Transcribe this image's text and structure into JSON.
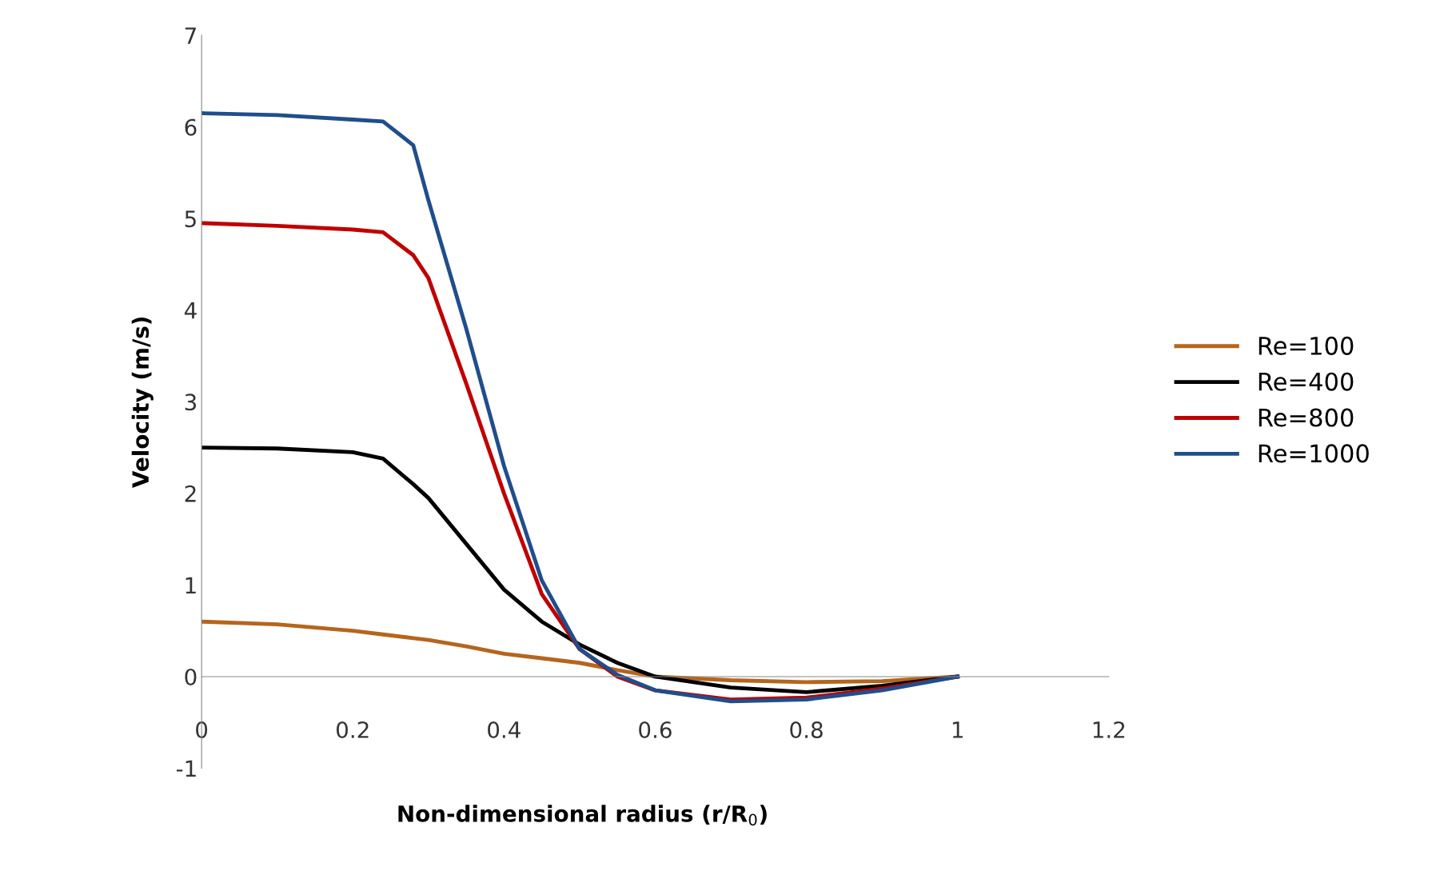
{
  "chart_data": {
    "type": "line",
    "xlabel": "Non-dimensional radius (r/R$_{0}$)",
    "ylabel": "Velocity (m/s)",
    "xlim": [
      0,
      1.2
    ],
    "xticks": [
      0,
      0.2,
      0.4,
      0.6,
      0.8,
      1,
      1.2
    ],
    "ylim": [
      -1,
      7
    ],
    "yticks": [
      -1,
      0,
      1,
      2,
      3,
      4,
      5,
      6,
      7
    ],
    "grid": false,
    "legend": "right",
    "marker": "none",
    "line_style": "solid",
    "x": [
      0,
      0.1,
      0.2,
      0.24,
      0.28,
      0.3,
      0.35,
      0.4,
      0.45,
      0.5,
      0.55,
      0.6,
      0.7,
      0.8,
      0.9,
      1.0
    ],
    "series": [
      {
        "name": "Re=100",
        "color": "#b5651d",
        "values": [
          0.6,
          0.57,
          0.5,
          0.46,
          0.42,
          0.4,
          0.33,
          0.25,
          0.2,
          0.15,
          0.07,
          0.0,
          -0.04,
          -0.06,
          -0.05,
          0
        ]
      },
      {
        "name": "Re=400",
        "color": "#000000",
        "values": [
          2.5,
          2.49,
          2.45,
          2.38,
          2.1,
          1.95,
          1.45,
          0.95,
          0.6,
          0.35,
          0.15,
          0.0,
          -0.12,
          -0.17,
          -0.1,
          0
        ]
      },
      {
        "name": "Re=800",
        "color": "#c00000",
        "values": [
          4.95,
          4.92,
          4.88,
          4.85,
          4.6,
          4.35,
          3.2,
          2.0,
          0.9,
          0.3,
          0.0,
          -0.15,
          -0.25,
          -0.23,
          -0.13,
          0
        ]
      },
      {
        "name": "Re=1000",
        "color": "#1f4e8c",
        "values": [
          6.15,
          6.13,
          6.08,
          6.06,
          5.8,
          5.2,
          3.8,
          2.3,
          1.05,
          0.3,
          0.02,
          -0.15,
          -0.27,
          -0.25,
          -0.15,
          0
        ]
      }
    ]
  }
}
